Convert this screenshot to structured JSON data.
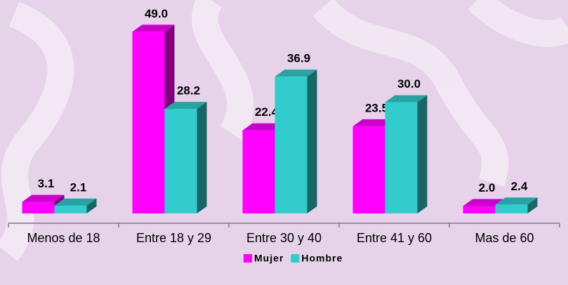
{
  "chart_data": {
    "type": "bar3d",
    "categories": [
      "Menos de 18",
      "Entre 18 y 29",
      "Entre 30 y 40",
      "Entre 41 y 60",
      "Mas de 60"
    ],
    "series": [
      {
        "name": "Mujer",
        "color": "#ff00ff",
        "values": [
          3.1,
          49.0,
          22.4,
          23.5,
          2.0
        ],
        "value_labels": [
          "3.1",
          "49.0",
          "22.4",
          "23.5",
          "2.0"
        ]
      },
      {
        "name": "Hombre",
        "color": "#33cccc",
        "values": [
          2.1,
          28.2,
          36.9,
          30.0,
          2.4
        ],
        "value_labels": [
          "2.1",
          "28.2",
          "36.9",
          "30.0",
          "2.4"
        ]
      }
    ],
    "legend": "bottom"
  }
}
